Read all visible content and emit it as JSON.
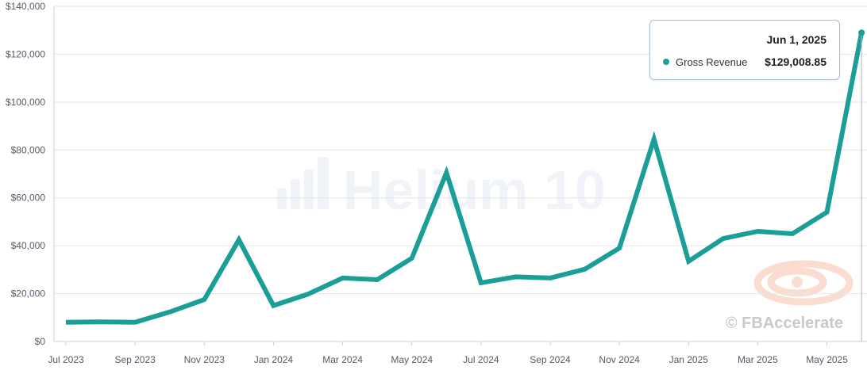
{
  "colors": {
    "line": "#1a9e97",
    "grid": "#e6e6e6",
    "axis_text": "#555b66"
  },
  "watermarks": {
    "center": "Helium 10",
    "bottom_right": "© FBAccelerate"
  },
  "tooltip": {
    "date": "Jun 1, 2025",
    "series_name": "Gross Revenue",
    "value": "$129,008.85"
  },
  "chart_data": {
    "type": "line",
    "title": "",
    "xlabel": "",
    "ylabel": "",
    "ylim": [
      0,
      140000
    ],
    "yticks": [
      "$0",
      "$20,000",
      "$40,000",
      "$60,000",
      "$80,000",
      "$100,000",
      "$120,000",
      "$140,000"
    ],
    "ytick_values": [
      0,
      20000,
      40000,
      60000,
      80000,
      100000,
      120000,
      140000
    ],
    "xtick_labels": [
      "Jul 2023",
      "Sep 2023",
      "Nov 2023",
      "Jan 2024",
      "Mar 2024",
      "May 2024",
      "Jul 2024",
      "Sep 2024",
      "Nov 2024",
      "Jan 2025",
      "Mar 2025",
      "May 2025"
    ],
    "x": [
      "2023-07",
      "2023-08",
      "2023-09",
      "2023-10",
      "2023-11",
      "2023-12",
      "2024-01",
      "2024-02",
      "2024-03",
      "2024-04",
      "2024-05",
      "2024-06",
      "2024-07",
      "2024-08",
      "2024-09",
      "2024-10",
      "2024-11",
      "2024-12",
      "2025-01",
      "2025-02",
      "2025-03",
      "2025-04",
      "2025-05",
      "2025-06"
    ],
    "series": [
      {
        "name": "Gross Revenue",
        "values": [
          8000,
          8200,
          8000,
          12300,
          17500,
          42500,
          15000,
          19800,
          26500,
          25800,
          34800,
          70500,
          24500,
          27000,
          26500,
          30200,
          39000,
          84500,
          33500,
          43000,
          46000,
          45000,
          54000,
          129008.85
        ]
      }
    ],
    "grid": true,
    "legend": "none"
  }
}
